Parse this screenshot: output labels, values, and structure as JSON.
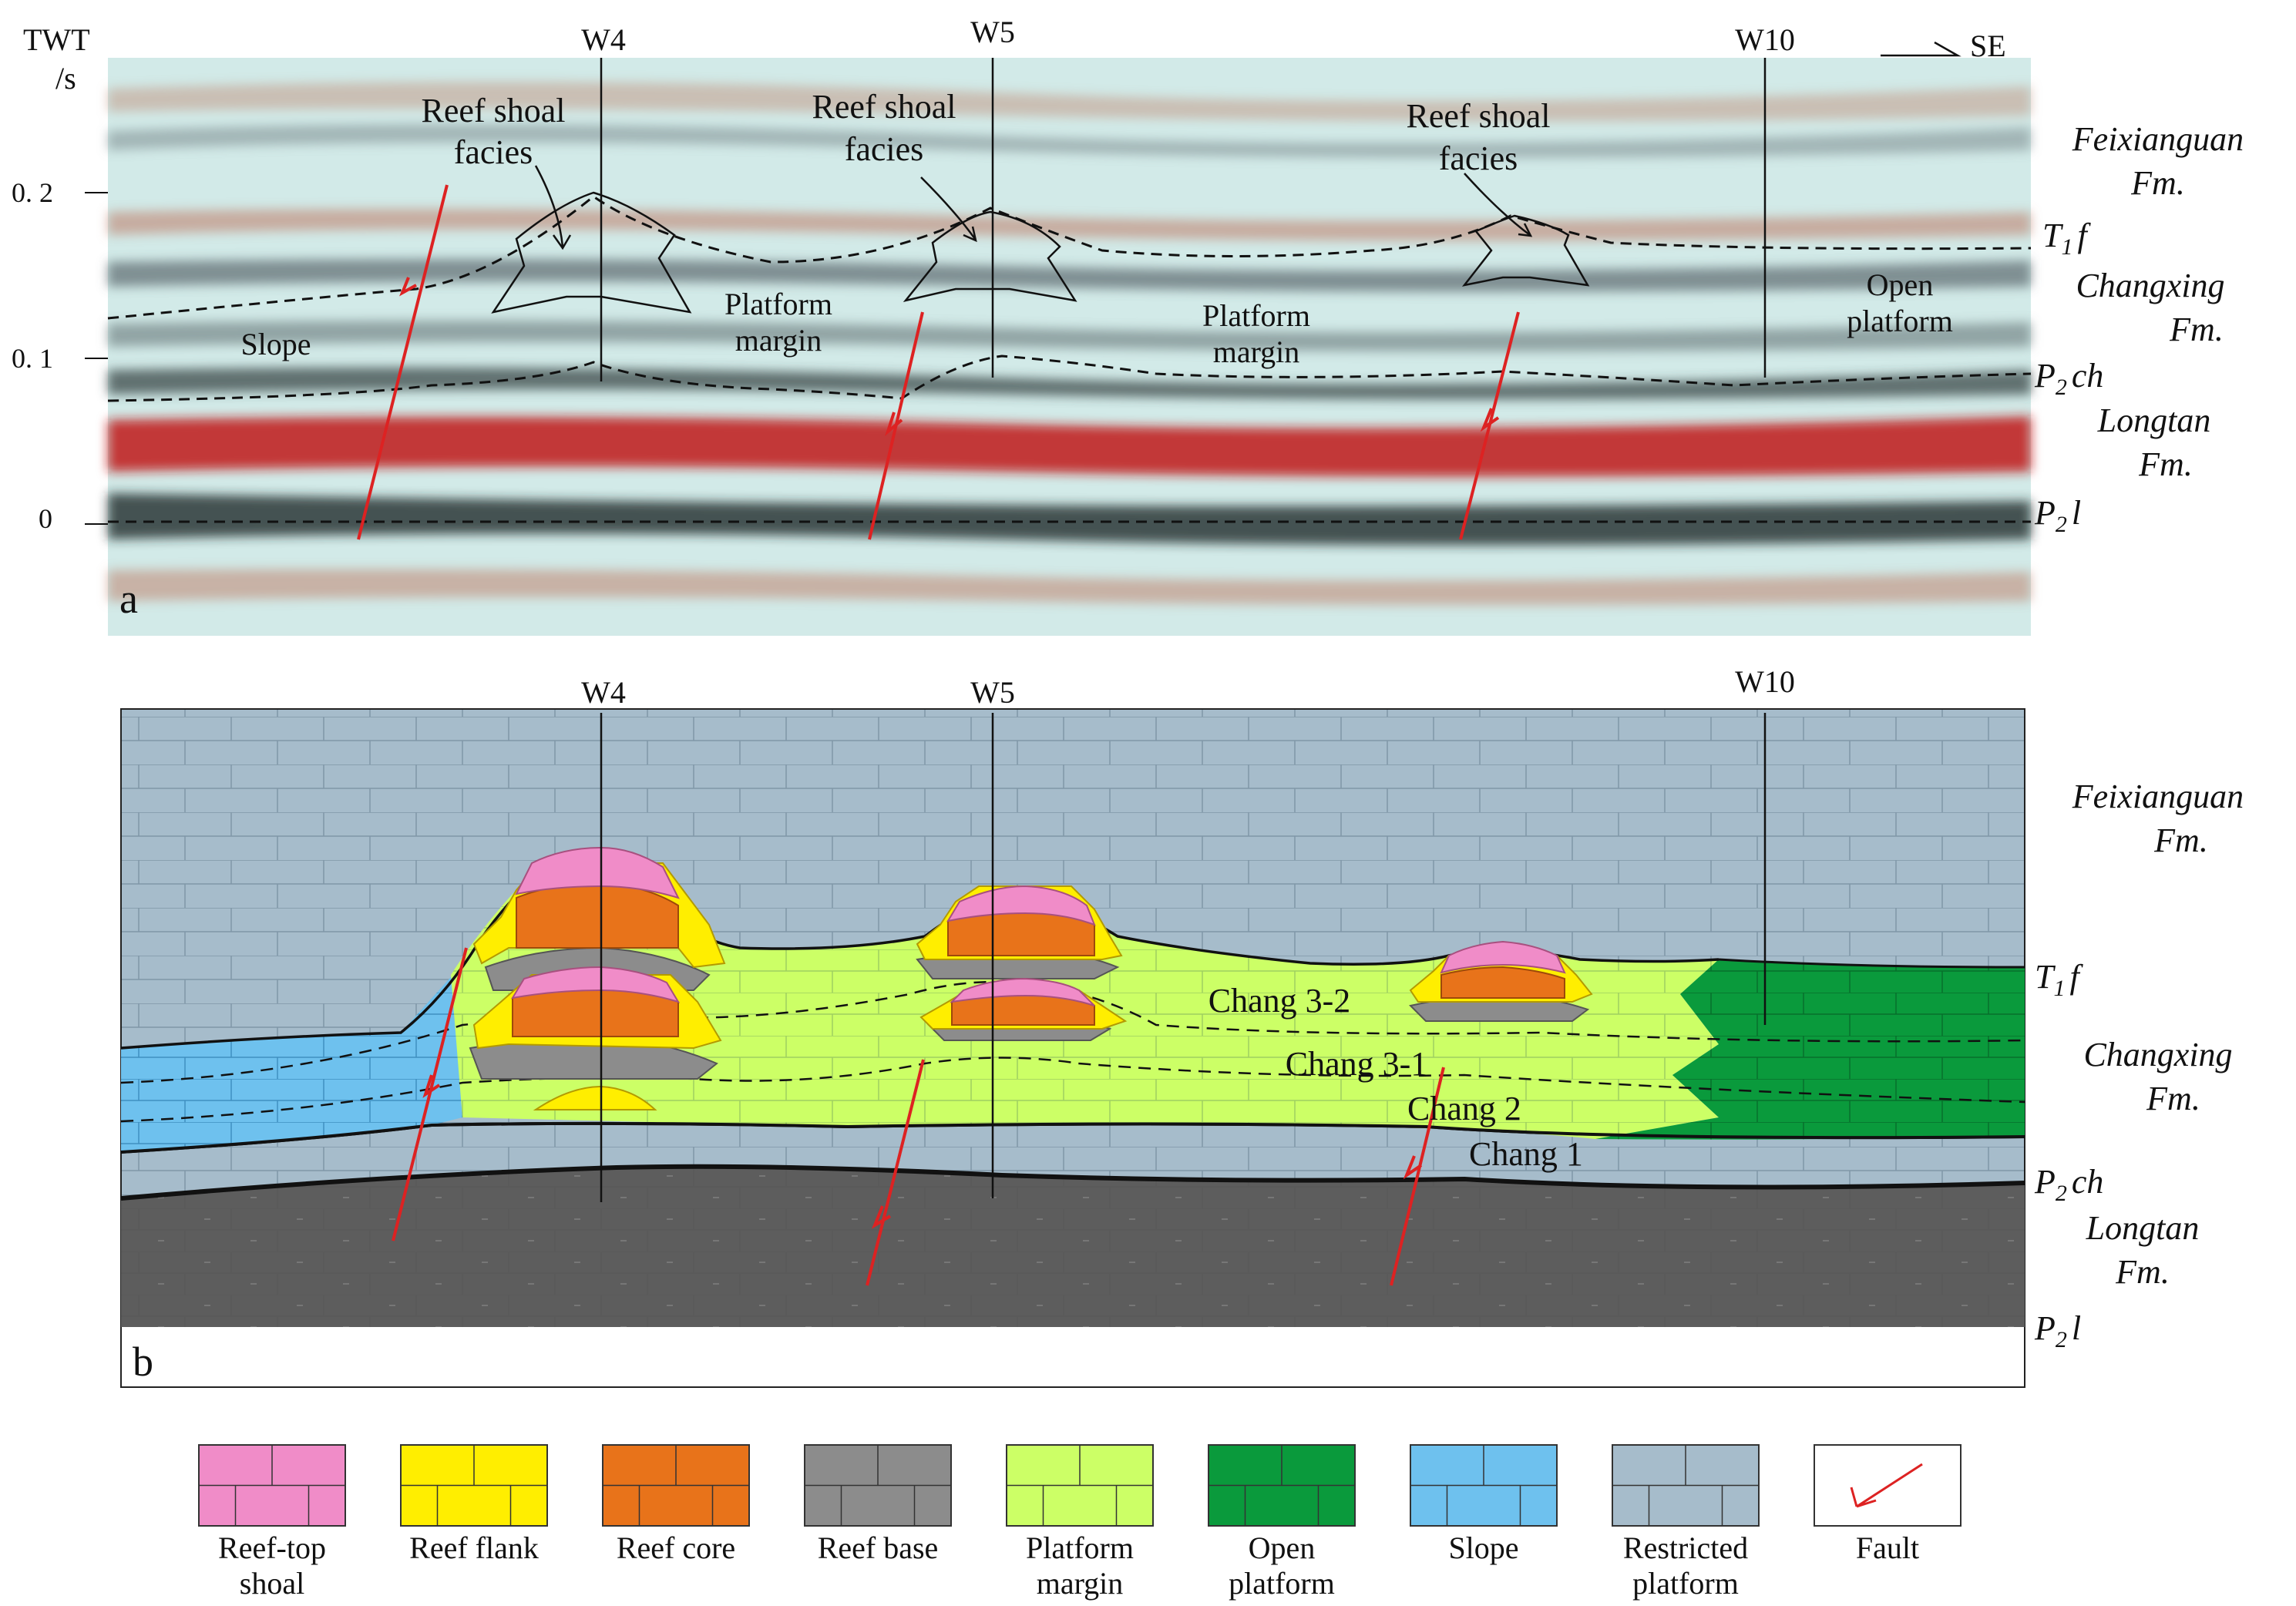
{
  "panel_a": {
    "label": "a",
    "axis": {
      "title_top": "TWT",
      "title_bottom": "/s",
      "ticks": [
        "0. 2",
        "0. 1",
        "0"
      ]
    },
    "direction": "SE",
    "wells": [
      "W4",
      "W5",
      "W10"
    ],
    "annotations": {
      "reef1_l1": "Reef shoal",
      "reef1_l2": "facies",
      "reef2_l1": "Reef shoal",
      "reef2_l2": "facies",
      "reef3_l1": "Reef shoal",
      "reef3_l2": "facies",
      "slope": "Slope",
      "pm1_l1": "Platform",
      "pm1_l2": "margin",
      "pm2_l1": "Platform",
      "pm2_l2": "margin",
      "op_l1": "Open",
      "op_l2": "platform"
    },
    "formations": {
      "feix_l1": "Feixianguan",
      "feix_l2": "Fm.",
      "t1f_main": "T",
      "t1f_sub": "1",
      "t1f_rest": "f",
      "chx_l1": "Changxing",
      "chx_l2": "Fm.",
      "p2ch_main": "P",
      "p2ch_sub": "2",
      "p2ch_rest": "ch",
      "lt_l1": "Longtan",
      "lt_l2": "Fm.",
      "p2l_main": "P",
      "p2l_sub": "2",
      "p2l_rest": "l"
    }
  },
  "panel_b": {
    "label": "b",
    "wells": [
      "W4",
      "W5",
      "W10"
    ],
    "units": {
      "c32": "Chang 3-2",
      "c31": "Chang 3-1",
      "c2": "Chang 2",
      "c1": "Chang 1"
    },
    "formations": {
      "feix_l1": "Feixianguan",
      "feix_l2": "Fm.",
      "t1f_main": "T",
      "t1f_sub": "1",
      "t1f_rest": "f",
      "chx_l1": "Changxing",
      "chx_l2": "Fm.",
      "p2ch_main": "P",
      "p2ch_sub": "2",
      "p2ch_rest": "ch",
      "lt_l1": "Longtan",
      "lt_l2": "Fm.",
      "p2l_main": "P",
      "p2l_sub": "2",
      "p2l_rest": "l"
    }
  },
  "legend": [
    {
      "line1": "Reef-top",
      "line2": "shoal",
      "color": "#f08cc8"
    },
    {
      "line1": "Reef  flank",
      "line2": "",
      "color": "#ffee00"
    },
    {
      "line1": "Reef  core",
      "line2": "",
      "color": "#e8731a"
    },
    {
      "line1": "Reef  base",
      "line2": "",
      "color": "#8c8c8c"
    },
    {
      "line1": "Platform",
      "line2": "margin",
      "color": "#ccff66"
    },
    {
      "line1": "Open",
      "line2": "platform",
      "color": "#0a9a3c"
    },
    {
      "line1": "Slope",
      "line2": "",
      "color": "#6ec1ee"
    },
    {
      "line1": "Restricted",
      "line2": "platform",
      "color": "#a6bccb"
    },
    {
      "line1": "Fault",
      "line2": "",
      "color": "#dd2222"
    }
  ]
}
